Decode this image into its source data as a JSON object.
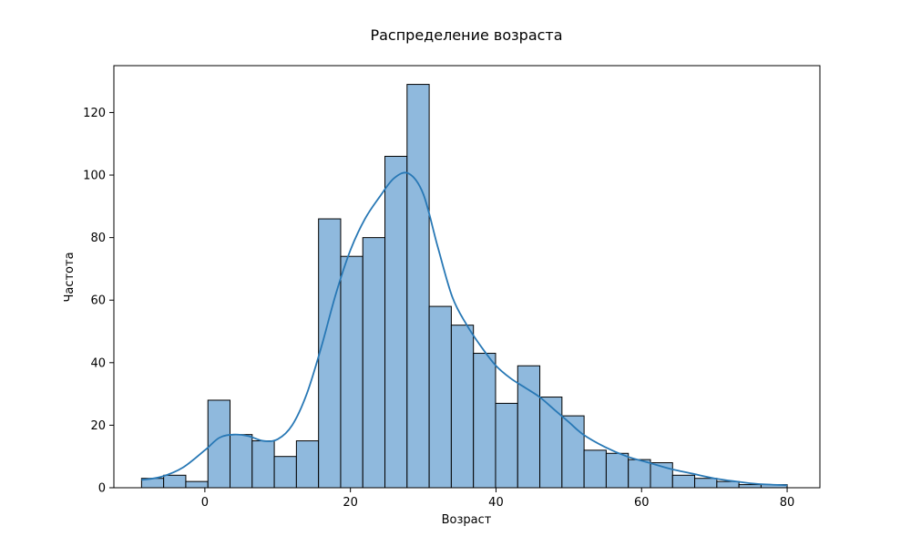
{
  "chart_data": {
    "type": "bar",
    "subtype": "histogram-with-kde",
    "title": "Распределение возраста",
    "xlabel": "Возраст",
    "ylabel": "Частота",
    "xlim": [
      -12.5,
      84.5
    ],
    "ylim": [
      0,
      135
    ],
    "xticks": [
      0,
      20,
      40,
      60,
      80
    ],
    "yticks": [
      0,
      20,
      40,
      60,
      80,
      100,
      120
    ],
    "grid": false,
    "legend": "none",
    "bar_color": "#8fb9dd",
    "edge_color": "#000000",
    "kde_color": "#2878b5",
    "bins": [
      {
        "x0": -8.7,
        "x1": -5.66,
        "count": 3
      },
      {
        "x0": -5.66,
        "x1": -2.62,
        "count": 4
      },
      {
        "x0": -2.62,
        "x1": 0.42,
        "count": 2
      },
      {
        "x0": 0.42,
        "x1": 3.46,
        "count": 28
      },
      {
        "x0": 3.46,
        "x1": 6.5,
        "count": 17
      },
      {
        "x0": 6.5,
        "x1": 9.54,
        "count": 15
      },
      {
        "x0": 9.54,
        "x1": 12.58,
        "count": 10
      },
      {
        "x0": 12.58,
        "x1": 15.62,
        "count": 15
      },
      {
        "x0": 15.62,
        "x1": 18.66,
        "count": 86
      },
      {
        "x0": 18.66,
        "x1": 21.7,
        "count": 74
      },
      {
        "x0": 21.7,
        "x1": 24.74,
        "count": 80
      },
      {
        "x0": 24.74,
        "x1": 27.78,
        "count": 106
      },
      {
        "x0": 27.78,
        "x1": 30.82,
        "count": 129
      },
      {
        "x0": 30.82,
        "x1": 33.86,
        "count": 58
      },
      {
        "x0": 33.86,
        "x1": 36.9,
        "count": 52
      },
      {
        "x0": 36.9,
        "x1": 39.94,
        "count": 43
      },
      {
        "x0": 39.94,
        "x1": 42.98,
        "count": 27
      },
      {
        "x0": 42.98,
        "x1": 46.02,
        "count": 39
      },
      {
        "x0": 46.02,
        "x1": 49.06,
        "count": 29
      },
      {
        "x0": 49.06,
        "x1": 52.1,
        "count": 23
      },
      {
        "x0": 52.1,
        "x1": 55.14,
        "count": 12
      },
      {
        "x0": 55.14,
        "x1": 58.18,
        "count": 11
      },
      {
        "x0": 58.18,
        "x1": 61.22,
        "count": 9
      },
      {
        "x0": 61.22,
        "x1": 64.26,
        "count": 8
      },
      {
        "x0": 64.26,
        "x1": 67.3,
        "count": 4
      },
      {
        "x0": 67.3,
        "x1": 70.34,
        "count": 3
      },
      {
        "x0": 70.34,
        "x1": 73.38,
        "count": 2
      },
      {
        "x0": 73.38,
        "x1": 76.42,
        "count": 1
      },
      {
        "x0": 76.42,
        "x1": 80.0,
        "count": 1
      }
    ],
    "kde": {
      "x": [
        -8.7,
        -6,
        -3,
        0,
        2,
        4,
        6,
        8,
        10,
        12,
        14,
        16,
        18,
        20,
        22,
        24,
        26,
        28,
        30,
        32,
        34,
        36,
        38,
        40,
        42,
        44,
        46,
        48,
        50,
        52,
        55,
        58,
        61,
        64,
        67,
        70,
        73,
        76,
        80
      ],
      "y": [
        2.5,
        3.5,
        6.5,
        12,
        16,
        17,
        16.5,
        15,
        15.5,
        20,
        30,
        45,
        62,
        76,
        86,
        93,
        99,
        100.5,
        94,
        77,
        61,
        52,
        45,
        39,
        35,
        32,
        29,
        25,
        21,
        17,
        13,
        10,
        8,
        6,
        4.5,
        3,
        2,
        1.2,
        0.8
      ]
    }
  }
}
